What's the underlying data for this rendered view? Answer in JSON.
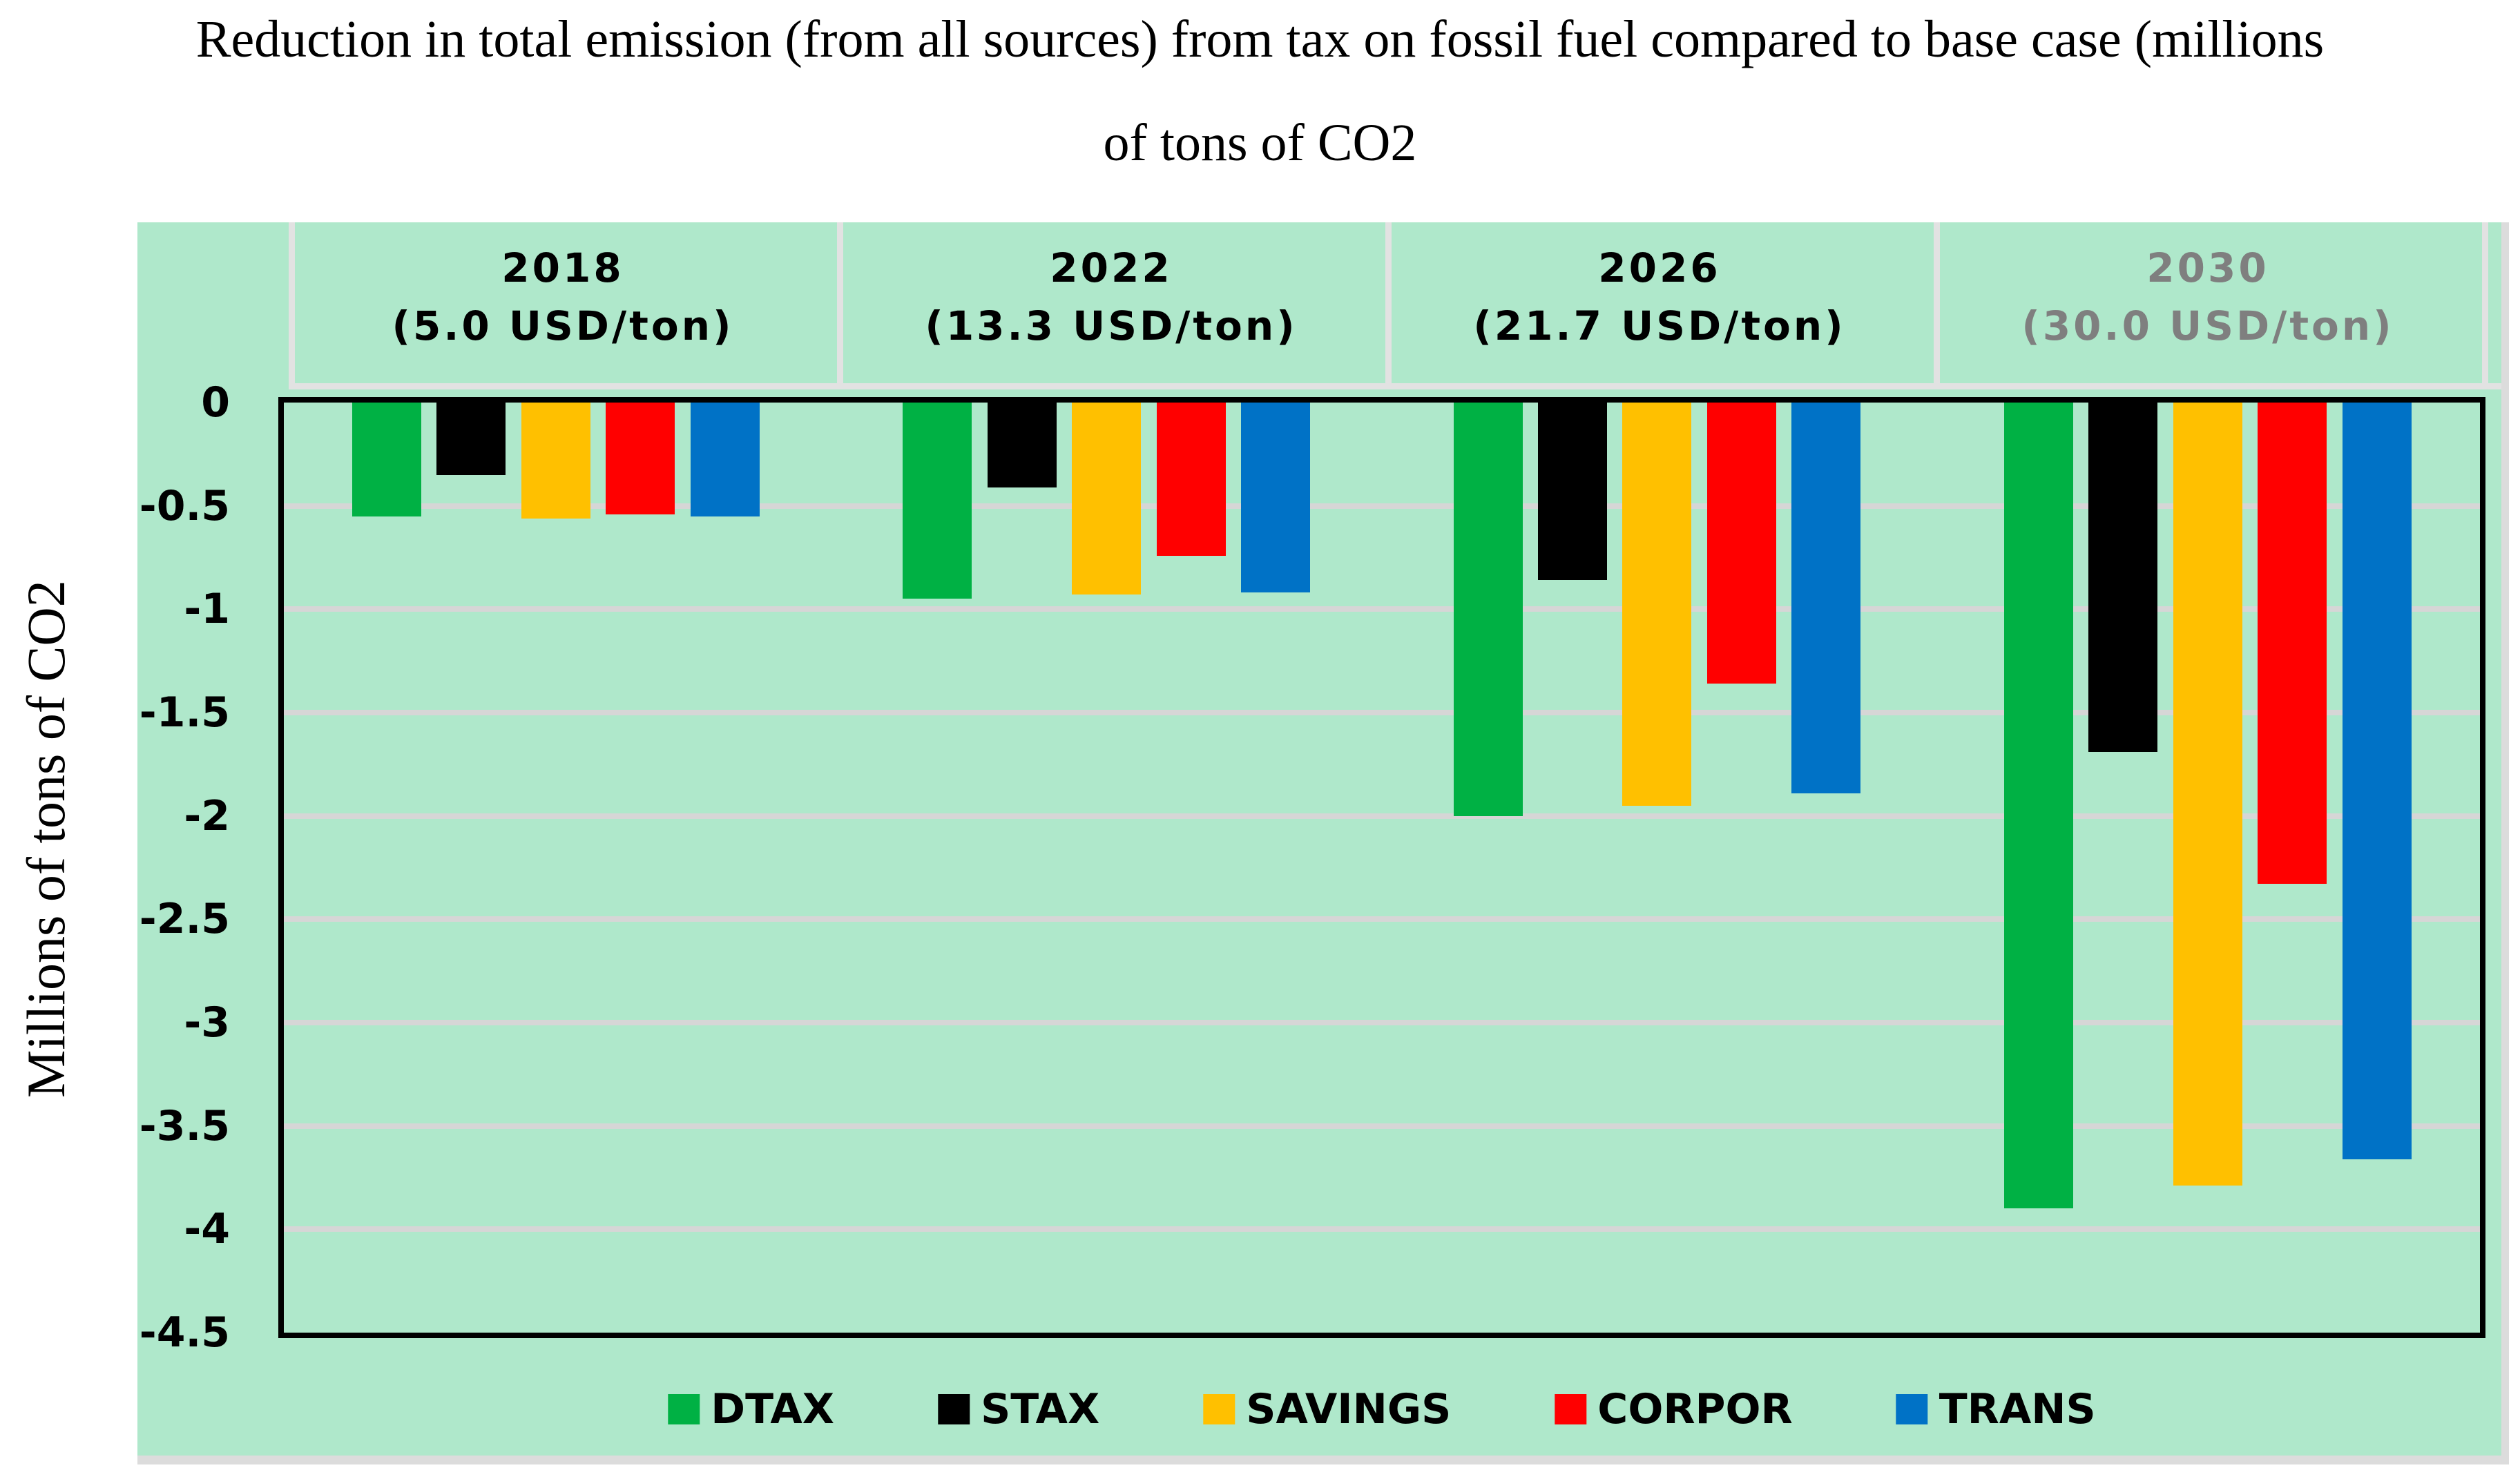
{
  "title": {
    "line1": "Reduction in total emission (from all sources) from tax on fossil fuel compared to base case (millions",
    "line2": "of tons of CO2"
  },
  "y_axis_label": "Millions of tons of CO2",
  "colors": {
    "plot_bg": "#AFE8CB",
    "gridline": "#D6D6D6",
    "header_divider": "#E2E2E2",
    "plot_border": "#000000",
    "chart_shadow": "#DCDCDC"
  },
  "chart_data": {
    "type": "bar",
    "title": "Reduction in total emission (from all sources) from tax on fossil fuel compared to base case (millions of tons of CO2",
    "xlabel": "",
    "ylabel": "Millions of tons of CO2",
    "ylim": [
      -4.5,
      0
    ],
    "y_ticks": [
      0,
      -0.5,
      -1,
      -1.5,
      -2,
      -2.5,
      -3,
      -3.5,
      -4,
      -4.5
    ],
    "y_tick_labels": [
      "0",
      "-0.5",
      "-1",
      "-1.5",
      "-2",
      "-2.5",
      "-3",
      "-3.5",
      "-4",
      "-4.5"
    ],
    "grid": true,
    "legend_position": "bottom",
    "groups": [
      {
        "year": "2018",
        "tax": "(5.0 USD/ton)",
        "label_color": "#000000"
      },
      {
        "year": "2022",
        "tax": "(13.3 USD/ton)",
        "label_color": "#000000"
      },
      {
        "year": "2026",
        "tax": "(21.7 USD/ton)",
        "label_color": "#000000"
      },
      {
        "year": "2030",
        "tax": "(30.0 USD/ton)",
        "label_color": "#7F7F7F"
      }
    ],
    "series": [
      {
        "name": "DTAX",
        "color": "#00B144",
        "values": [
          -0.55,
          -0.95,
          -2.0,
          -3.9
        ]
      },
      {
        "name": "STAX",
        "color": "#000000",
        "values": [
          -0.35,
          -0.41,
          -0.86,
          -1.69
        ]
      },
      {
        "name": "SAVINGS",
        "color": "#FFC000",
        "values": [
          -0.56,
          -0.93,
          -1.95,
          -3.79
        ]
      },
      {
        "name": "CORPOR",
        "color": "#FF0000",
        "values": [
          -0.54,
          -0.74,
          -1.36,
          -2.33
        ]
      },
      {
        "name": "TRANS",
        "color": "#0072C6",
        "values": [
          -0.55,
          -0.92,
          -1.89,
          -3.66
        ]
      }
    ]
  }
}
